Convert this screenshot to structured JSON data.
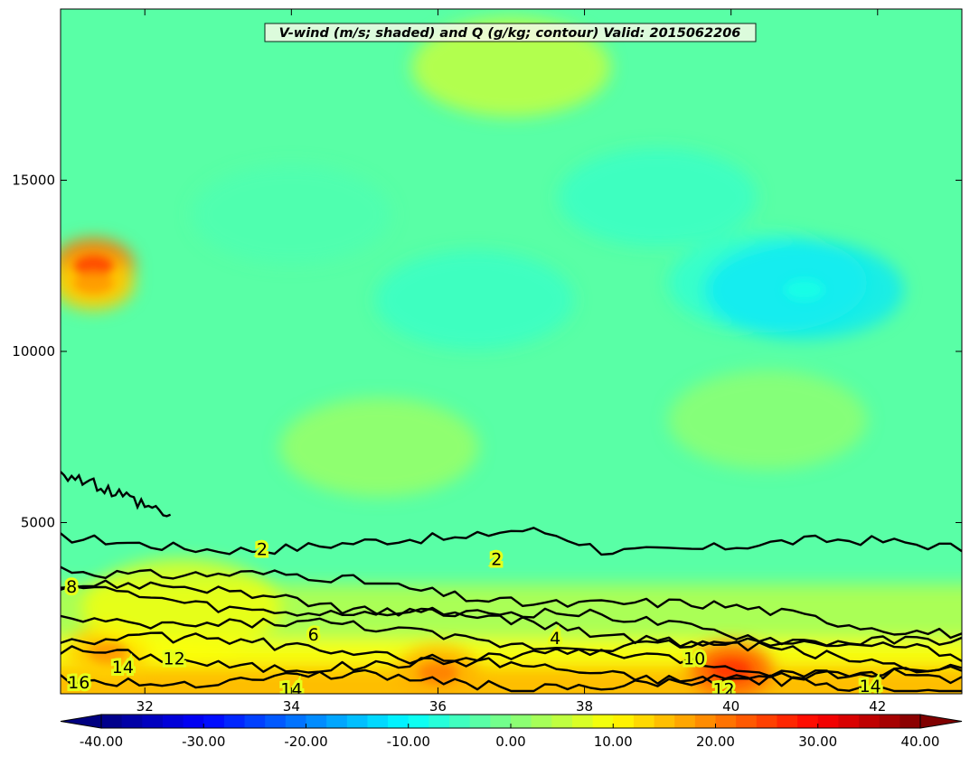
{
  "chart_data": {
    "type": "heatmap",
    "title": "V-wind (m/s; shaded) and Q (g/kg; contour) Valid: 2015062206",
    "xlabel": "",
    "ylabel": "",
    "xlim": [
      30.85,
      43.15
    ],
    "ylim": [
      0,
      20000
    ],
    "x_ticks": [
      "32",
      "34",
      "36",
      "38",
      "40",
      "42"
    ],
    "y_ticks": [
      "5000",
      "10000",
      "15000"
    ],
    "shaded_field": {
      "name": "V-wind (m/s)",
      "background_value": -3,
      "features": [
        {
          "x": 31.3,
          "y": 12500,
          "value": 21
        },
        {
          "x": 31.3,
          "y": 12000,
          "value": 14
        },
        {
          "x": 37.0,
          "y": 18300,
          "value": 7
        },
        {
          "x": 35.2,
          "y": 7200,
          "value": 3
        },
        {
          "x": 40.5,
          "y": 8000,
          "value": 2
        },
        {
          "x": 36.5,
          "y": 11500,
          "value": -6
        },
        {
          "x": 40.5,
          "y": 12000,
          "value": -7
        },
        {
          "x": 41.0,
          "y": 11800,
          "value": -12
        },
        {
          "x": 34.0,
          "y": 14000,
          "value": -4
        },
        {
          "x": 39.0,
          "y": 14500,
          "value": -6
        },
        {
          "x": 31.5,
          "y": 1200,
          "value": 14
        },
        {
          "x": 32.5,
          "y": 2500,
          "value": 10
        },
        {
          "x": 36.0,
          "y": 600,
          "value": 16
        },
        {
          "x": 40.0,
          "y": 700,
          "value": 22
        }
      ]
    },
    "contour_field": {
      "name": "Q (g/kg)",
      "levels": [
        2,
        4,
        6,
        8,
        10,
        12,
        14,
        16
      ],
      "labels": [
        {
          "text": "2",
          "x": 33.6,
          "y": 4200
        },
        {
          "text": "2",
          "x": 36.8,
          "y": 3900
        },
        {
          "text": "4",
          "x": 37.6,
          "y": 1600
        },
        {
          "text": "6",
          "x": 34.3,
          "y": 1700
        },
        {
          "text": "8",
          "x": 31.0,
          "y": 3100
        },
        {
          "text": "10",
          "x": 39.5,
          "y": 1000
        },
        {
          "text": "12",
          "x": 32.4,
          "y": 1000
        },
        {
          "text": "12",
          "x": 39.9,
          "y": 100
        },
        {
          "text": "14",
          "x": 31.7,
          "y": 750
        },
        {
          "text": "14",
          "x": 34.0,
          "y": 100
        },
        {
          "text": "14",
          "x": 41.9,
          "y": 200
        },
        {
          "text": "16",
          "x": 31.1,
          "y": 300
        }
      ]
    },
    "colorbar": {
      "orientation": "horizontal",
      "range": [
        -40,
        40
      ],
      "extend": "both",
      "tick_labels": [
        "-40.00",
        "-30.00",
        "-20.00",
        "-10.00",
        "0.00",
        "10.00",
        "20.00",
        "30.00",
        "40.00"
      ]
    },
    "grid": false,
    "colormap": "jet"
  }
}
